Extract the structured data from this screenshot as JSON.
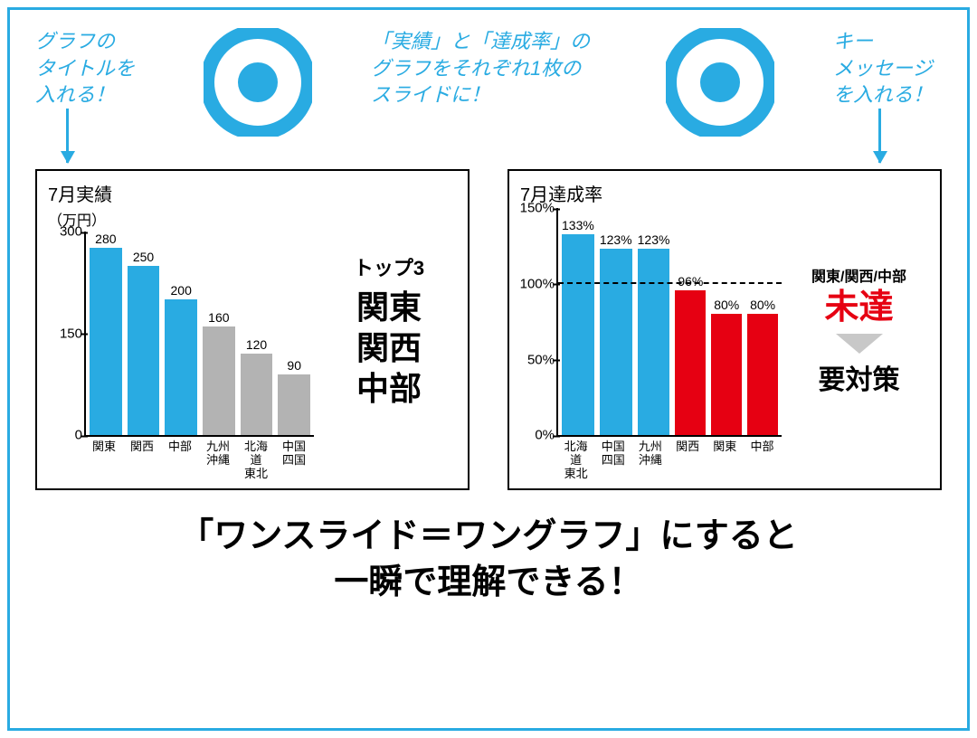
{
  "colors": {
    "accent_blue": "#29abe2",
    "red": "#e60012",
    "gray_bar": "#b3b3b3",
    "black": "#000000",
    "gray_arrow": "#c8c8c8"
  },
  "annotations": {
    "left": "グラフの\nタイトルを\n入れる！",
    "middle": "「実績」と「達成率」の\nグラフをそれぞれ1枚の\nスライドに！",
    "right": "キー\nメッセージ\nを入れる！"
  },
  "bullseye": {
    "outer_radius": 56,
    "ring_width": 16,
    "inner_radius": 22,
    "color": "#29abe2"
  },
  "chart1": {
    "type": "bar",
    "title": "7月実績",
    "subtitle": "（万円）",
    "ymax": 300,
    "yticks": [
      {
        "v": 300,
        "label": "300"
      },
      {
        "v": 150,
        "label": "150"
      },
      {
        "v": 0,
        "label": "0"
      }
    ],
    "bars": [
      {
        "label": "関東",
        "value": 280,
        "display": "280",
        "color": "#29abe2"
      },
      {
        "label": "関西",
        "value": 250,
        "display": "250",
        "color": "#29abe2"
      },
      {
        "label": "中部",
        "value": 200,
        "display": "200",
        "color": "#29abe2"
      },
      {
        "label": "九州\n沖縄",
        "value": 160,
        "display": "160",
        "color": "#b3b3b3"
      },
      {
        "label": "北海道\n東北",
        "value": 120,
        "display": "120",
        "color": "#b3b3b3"
      },
      {
        "label": "中国\n四国",
        "value": 90,
        "display": "90",
        "color": "#b3b3b3"
      }
    ],
    "side": {
      "heading": "トップ3",
      "lines": [
        "関東",
        "関西",
        "中部"
      ]
    }
  },
  "chart2": {
    "type": "bar",
    "title": "7月達成率",
    "ymax": 150,
    "yticks": [
      {
        "v": 150,
        "label": "150%"
      },
      {
        "v": 100,
        "label": "100%"
      },
      {
        "v": 50,
        "label": "50%"
      },
      {
        "v": 0,
        "label": "0%"
      }
    ],
    "reference_line": 100,
    "bars": [
      {
        "label": "北海道\n東北",
        "value": 133,
        "display": "133%",
        "color": "#29abe2"
      },
      {
        "label": "中国\n四国",
        "value": 123,
        "display": "123%",
        "color": "#29abe2"
      },
      {
        "label": "九州\n沖縄",
        "value": 123,
        "display": "123%",
        "color": "#29abe2"
      },
      {
        "label": "関西",
        "value": 96,
        "display": "96%",
        "color": "#e60012"
      },
      {
        "label": "関東",
        "value": 80,
        "display": "80%",
        "color": "#e60012"
      },
      {
        "label": "中部",
        "value": 80,
        "display": "80%",
        "color": "#e60012"
      }
    ],
    "side": {
      "subhead": "関東/関西/中部",
      "red": "未達",
      "footer": "要対策"
    }
  },
  "bottom_message": "「ワンスライド＝ワングラフ」にすると\n一瞬で理解できる！"
}
